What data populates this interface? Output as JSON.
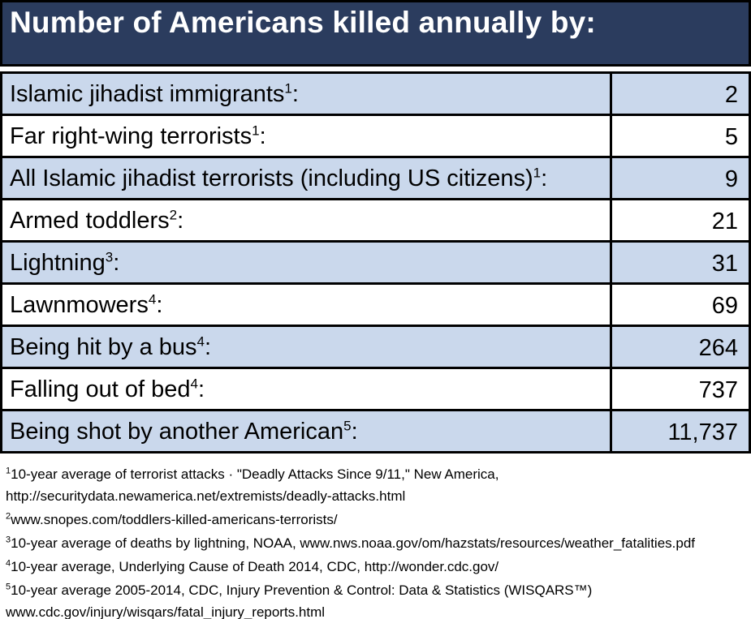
{
  "title": "Number of Americans killed annually by:",
  "colors": {
    "header_bg": "#2B3C5E",
    "header_text": "#FFFFFF",
    "row_alt_bg": "#CAD8EC",
    "row_bg": "#FFFFFF",
    "border": "#000000",
    "text": "#000000"
  },
  "table": {
    "rows": [
      {
        "label": "Islamic jihadist immigrants",
        "sup": "1",
        "value": "2"
      },
      {
        "label": "Far right-wing terrorists",
        "sup": "1",
        "value": "5"
      },
      {
        "label": "All Islamic jihadist terrorists (including US citizens)",
        "sup": "1",
        "value": "9"
      },
      {
        "label": "Armed toddlers",
        "sup": "2",
        "value": "21"
      },
      {
        "label": "Lightning",
        "sup": "3",
        "value": "31"
      },
      {
        "label": "Lawnmowers",
        "sup": "4",
        "value": "69"
      },
      {
        "label": "Being hit by a bus",
        "sup": "4",
        "value": "264"
      },
      {
        "label": "Falling out of bed",
        "sup": "4",
        "value": "737"
      },
      {
        "label": "Being shot by another American",
        "sup": "5",
        "value": "11,737"
      }
    ]
  },
  "footnotes": [
    {
      "sup": "1",
      "lines": [
        "10-year average of terrorist attacks · \"Deadly Attacks Since 9/11,\" New America,",
        "http://securitydata.newamerica.net/extremists/deadly-attacks.html"
      ]
    },
    {
      "sup": "2",
      "lines": [
        "www.snopes.com/toddlers-killed-americans-terrorists/"
      ]
    },
    {
      "sup": "3",
      "lines": [
        "10-year average of deaths by lightning, NOAA, www.nws.noaa.gov/om/hazstats/resources/weather_fatalities.pdf"
      ]
    },
    {
      "sup": "4",
      "lines": [
        "10-year average, Underlying Cause of Death 2014, CDC, http://wonder.cdc.gov/"
      ]
    },
    {
      "sup": "5",
      "lines": [
        "10-year average 2005-2014, CDC, Injury Prevention & Control: Data & Statistics (WISQARS™)",
        "www.cdc.gov/injury/wisqars/fatal_injury_reports.html"
      ]
    }
  ],
  "chart_data": {
    "type": "table",
    "title": "Number of Americans killed annually by:",
    "categories": [
      "Islamic jihadist immigrants",
      "Far right-wing terrorists",
      "All Islamic jihadist terrorists (including US citizens)",
      "Armed toddlers",
      "Lightning",
      "Lawnmowers",
      "Being hit by a bus",
      "Falling out of bed",
      "Being shot by another American"
    ],
    "values": [
      2,
      5,
      9,
      21,
      31,
      69,
      264,
      737,
      11737
    ]
  }
}
